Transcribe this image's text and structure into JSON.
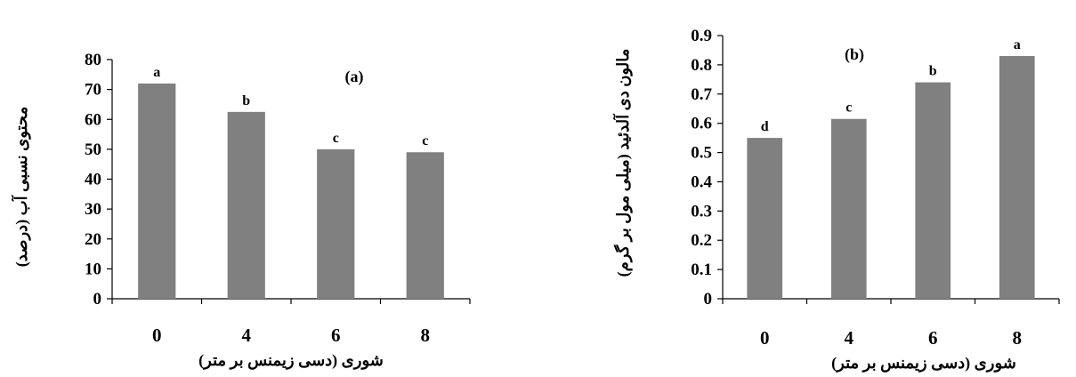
{
  "chart_data": [
    {
      "id": "a",
      "type": "bar",
      "panel_label": "(a)",
      "categories": [
        "0",
        "4",
        "6",
        "8"
      ],
      "values": [
        72,
        62.5,
        50,
        49
      ],
      "significance_letters": [
        "a",
        "b",
        "c",
        "c"
      ],
      "ylim": [
        0,
        80
      ],
      "yticks": [
        "0",
        "10",
        "20",
        "30",
        "40",
        "50",
        "60",
        "70",
        "80"
      ],
      "xlabel": "شوری (دسی زیمنس بر متر)",
      "ylabel": "محتوی نسبی آب (درصد)",
      "bar_color": "#808080",
      "grid": false
    },
    {
      "id": "b",
      "type": "bar",
      "panel_label": "(b)",
      "categories": [
        "0",
        "4",
        "6",
        "8"
      ],
      "values": [
        0.55,
        0.615,
        0.74,
        0.83
      ],
      "significance_letters": [
        "d",
        "c",
        "b",
        "a"
      ],
      "ylim": [
        0,
        0.9
      ],
      "yticks": [
        "0",
        "0.1",
        "0.2",
        "0.3",
        "0.4",
        "0.5",
        "0.6",
        "0.7",
        "0.8",
        "0.9"
      ],
      "xlabel": "شوری (دسی زیمنس بر متر)",
      "ylabel": "مالون دی آلدئید (میلی مول بر گرم)",
      "bar_color": "#808080",
      "grid": false
    }
  ]
}
